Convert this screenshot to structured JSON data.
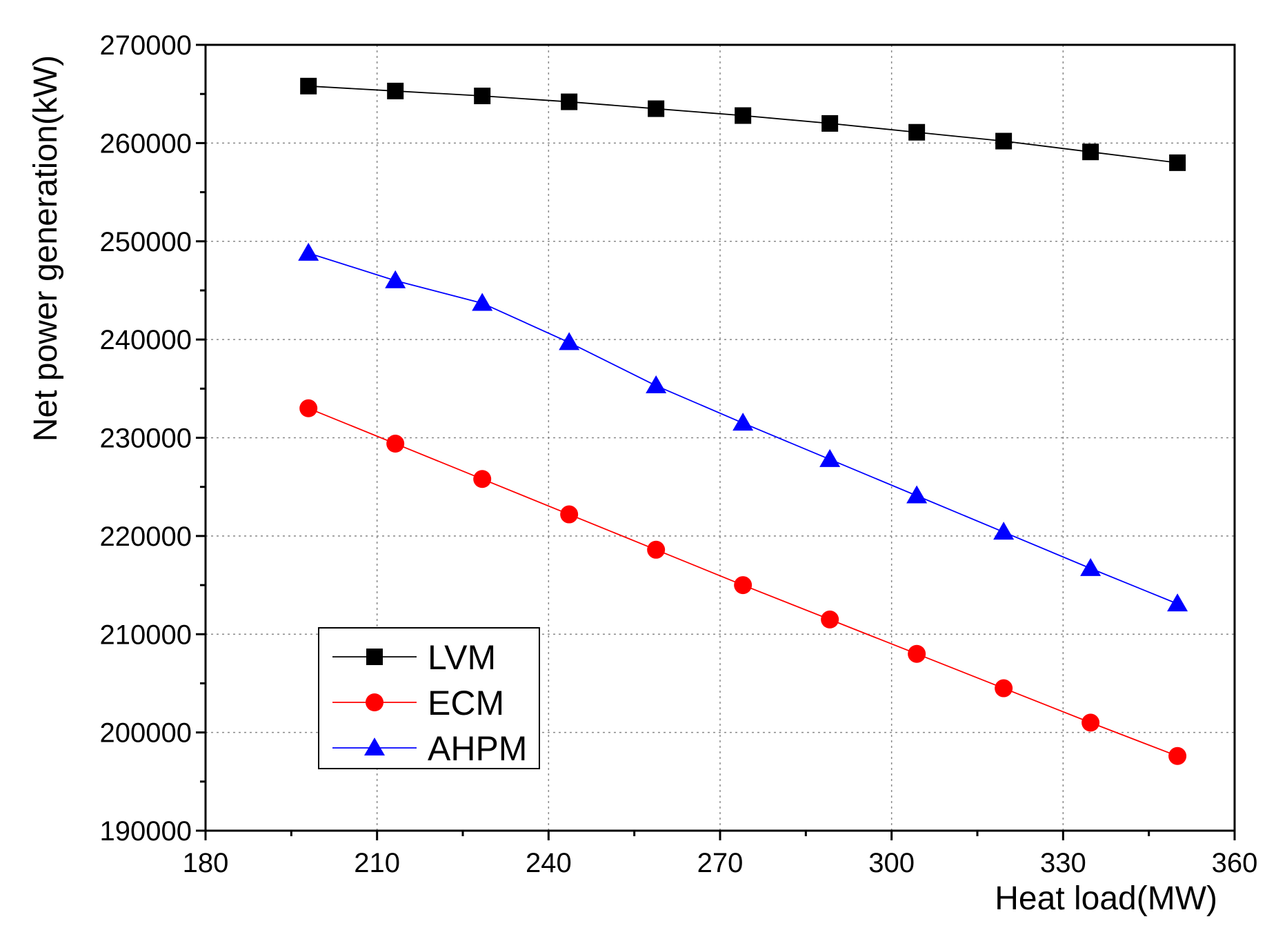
{
  "chart_data": {
    "type": "line",
    "xlabel": "Heat load(MW)",
    "ylabel": "Net power generation(kW)",
    "xlim": [
      180,
      360
    ],
    "ylim": [
      190000,
      270000
    ],
    "x_ticks": [
      "180",
      "210",
      "240",
      "270",
      "300",
      "330",
      "360"
    ],
    "y_ticks": [
      "190000",
      "200000",
      "210000",
      "220000",
      "230000",
      "240000",
      "250000",
      "260000",
      "270000"
    ],
    "grid": true,
    "legend_position": "bottom-left",
    "x": [
      198,
      213.2,
      228.4,
      243.6,
      258.8,
      274,
      289.2,
      304.4,
      319.6,
      334.8,
      350
    ],
    "series": [
      {
        "name": "LVM",
        "marker": "square",
        "color": "#000000",
        "values": [
          265800,
          265300,
          264800,
          264200,
          263500,
          262800,
          262000,
          261100,
          260200,
          259100,
          258000
        ]
      },
      {
        "name": "ECM",
        "marker": "circle",
        "color": "#ff0000",
        "values": [
          233000,
          229400,
          225800,
          222200,
          218600,
          215000,
          211500,
          208000,
          204500,
          201000,
          197600
        ]
      },
      {
        "name": "AHPM",
        "marker": "triangle",
        "color": "#0000ff",
        "values": [
          248800,
          246000,
          243700,
          239700,
          235300,
          231500,
          227800,
          224100,
          220400,
          216700,
          213100
        ]
      }
    ]
  }
}
